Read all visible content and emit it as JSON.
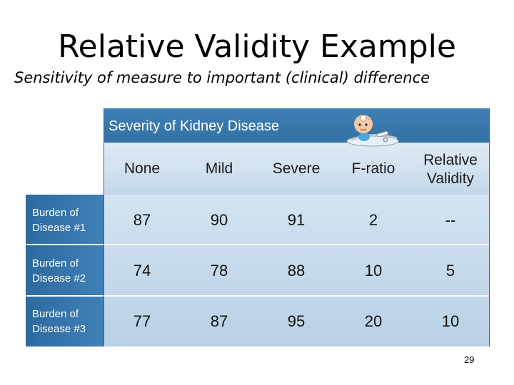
{
  "title": "Relative Validity Example",
  "subtitle": "Sensitivity of measure to important (clinical) difference",
  "table": {
    "banner": "Severity of Kidney Disease",
    "columns": [
      "None",
      "Mild",
      "Severe",
      "F-ratio",
      "Relative Validity"
    ],
    "rows": [
      {
        "label": "Burden of Disease #1",
        "cells": [
          "87",
          "90",
          "91",
          "2",
          "--"
        ]
      },
      {
        "label": "Burden of Disease #2",
        "cells": [
          "74",
          "78",
          "88",
          "10",
          "5"
        ]
      },
      {
        "label": "Burden of Disease #3",
        "cells": [
          "77",
          "87",
          "95",
          "20",
          "10"
        ]
      }
    ],
    "colors": {
      "banner": "#3a78ac",
      "header": "#d6e4f1",
      "row_header": "#3573a8",
      "body": "#c6daec"
    }
  },
  "icon": "doctor-mascot-icon",
  "page_number": "29"
}
